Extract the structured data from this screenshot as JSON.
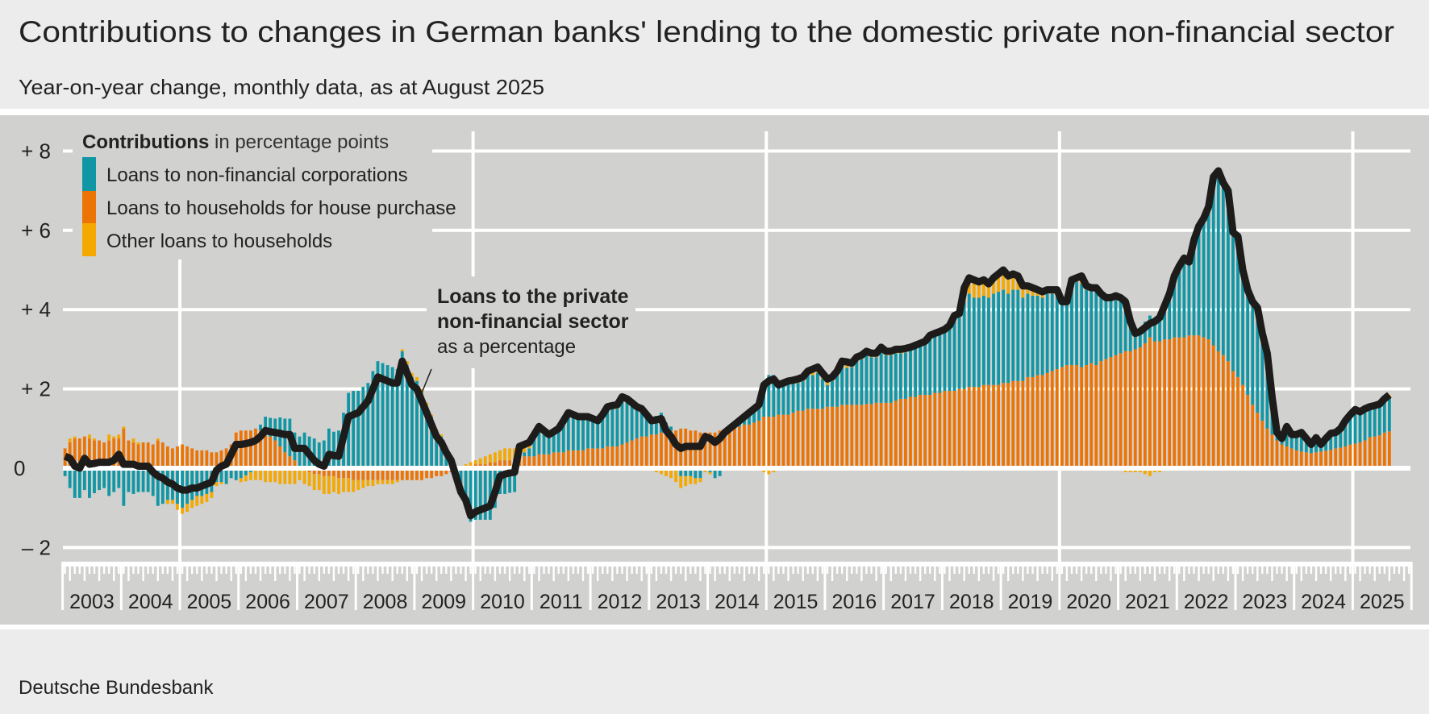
{
  "header": {
    "title": "Contributions to changes in German banks' lending to the domestic private non-financial sector",
    "subtitle": "Year-on-year change, monthly data, as at August 2025"
  },
  "footer": {
    "source": "Deutsche Bundesbank"
  },
  "legend": {
    "heading_bold": "Contributions",
    "heading_rest": " in percentage points",
    "items": [
      {
        "label": "Loans to non-financial corporations",
        "color": "#1096a4"
      },
      {
        "label": "Loans to households for house purchase",
        "color": "#ec7404"
      },
      {
        "label": "Other loans to households",
        "color": "#f5a800"
      }
    ]
  },
  "annotation": {
    "line1": "Loans to the private",
    "line2": "non-financial sector",
    "line3": "as a percentage"
  },
  "colors": {
    "background": "#ececec",
    "panel": "#d1d1cf",
    "grid": "#ffffff",
    "line": "#1e1c1a"
  },
  "chart_data": {
    "type": "bar",
    "stacked": true,
    "frequency": "monthly",
    "x_start": "2003-01",
    "x_end": "2025-08",
    "x_tick_labels": [
      "2003",
      "2004",
      "2005",
      "2006",
      "2007",
      "2008",
      "2009",
      "2010",
      "2011",
      "2012",
      "2013",
      "2014",
      "2015",
      "2016",
      "2017",
      "2018",
      "2019",
      "2020",
      "2021",
      "2022",
      "2023",
      "2024",
      "2025"
    ],
    "y_tick_labels": [
      "– 2",
      "0",
      "+ 2",
      "+ 4",
      "+ 6",
      "+ 8"
    ],
    "y_ticks": [
      -2,
      0,
      2,
      4,
      6,
      8
    ],
    "ylim": [
      -2.9,
      8.6
    ],
    "grid": true,
    "legend_position": "top-left",
    "line_series": {
      "name": "Loans to the private non-financial sector as a percentage",
      "values": [
        0.3,
        0.25,
        0.05,
        0.0,
        0.25,
        0.1,
        0.12,
        0.15,
        0.15,
        0.15,
        0.2,
        0.35,
        0.1,
        0.1,
        0.1,
        0.05,
        0.05,
        0.05,
        -0.1,
        -0.2,
        -0.25,
        -0.35,
        -0.4,
        -0.5,
        -0.55,
        -0.55,
        -0.5,
        -0.5,
        -0.45,
        -0.4,
        -0.35,
        -0.05,
        0.05,
        0.1,
        0.35,
        0.6,
        0.6,
        0.62,
        0.65,
        0.7,
        0.8,
        0.95,
        0.92,
        0.9,
        0.88,
        0.85,
        0.85,
        0.5,
        0.5,
        0.5,
        0.35,
        0.2,
        0.1,
        0.05,
        0.35,
        0.32,
        0.3,
        0.8,
        1.3,
        1.35,
        1.4,
        1.55,
        1.7,
        2.0,
        2.3,
        2.25,
        2.2,
        2.15,
        2.15,
        2.7,
        2.4,
        2.1,
        2.0,
        1.7,
        1.4,
        1.1,
        0.8,
        0.65,
        0.4,
        0.2,
        -0.2,
        -0.6,
        -0.8,
        -1.2,
        -1.1,
        -1.05,
        -1.0,
        -0.95,
        -0.6,
        -0.2,
        -0.15,
        -0.12,
        -0.1,
        0.55,
        0.6,
        0.65,
        0.85,
        1.05,
        0.95,
        0.85,
        0.92,
        1.0,
        1.2,
        1.4,
        1.35,
        1.3,
        1.3,
        1.3,
        1.25,
        1.2,
        1.35,
        1.55,
        1.58,
        1.6,
        1.8,
        1.75,
        1.65,
        1.55,
        1.5,
        1.35,
        1.2,
        1.22,
        1.25,
        0.95,
        0.8,
        0.6,
        0.5,
        0.55,
        0.55,
        0.55,
        0.55,
        0.8,
        0.75,
        0.65,
        0.75,
        0.9,
        1.0,
        1.1,
        1.2,
        1.3,
        1.4,
        1.5,
        1.6,
        2.1,
        2.2,
        2.25,
        2.1,
        2.15,
        2.2,
        2.22,
        2.25,
        2.3,
        2.45,
        2.5,
        2.55,
        2.4,
        2.25,
        2.3,
        2.45,
        2.7,
        2.68,
        2.65,
        2.8,
        2.85,
        2.95,
        2.9,
        2.9,
        3.05,
        2.95,
        2.95,
        3.0,
        3.0,
        3.02,
        3.05,
        3.1,
        3.15,
        3.2,
        3.35,
        3.4,
        3.45,
        3.5,
        3.6,
        3.85,
        3.9,
        4.55,
        4.8,
        4.75,
        4.7,
        4.75,
        4.65,
        4.8,
        4.9,
        5.0,
        4.85,
        4.9,
        4.85,
        4.6,
        4.6,
        4.55,
        4.5,
        4.45,
        4.5,
        4.5,
        4.5,
        4.2,
        4.2,
        4.75,
        4.8,
        4.85,
        4.6,
        4.55,
        4.55,
        4.4,
        4.3,
        4.3,
        4.35,
        4.3,
        4.2,
        3.7,
        3.4,
        3.45,
        3.55,
        3.65,
        3.7,
        3.8,
        4.1,
        4.4,
        4.85,
        5.1,
        5.3,
        5.2,
        5.75,
        6.1,
        6.3,
        6.6,
        7.35,
        7.5,
        7.2,
        7.0,
        5.95,
        5.85,
        5.0,
        4.5,
        4.2,
        4.05,
        3.4,
        2.9,
        1.8,
        0.9,
        0.75,
        1.05,
        0.85,
        0.85,
        0.9,
        0.75,
        0.6,
        0.77,
        0.6,
        0.75,
        0.88,
        0.9,
        1.0,
        1.2,
        1.35,
        1.48,
        1.42,
        1.5,
        1.55,
        1.58,
        1.62,
        1.75,
        1.85
      ]
    },
    "series": [
      {
        "name": "Loans to non-financial corporations",
        "color": "#1096a4",
        "values": [
          -0.2,
          -0.5,
          -0.75,
          -0.75,
          -0.55,
          -0.75,
          -0.63,
          -0.55,
          -0.5,
          -0.7,
          -0.6,
          -0.5,
          -0.95,
          -0.6,
          -0.65,
          -0.6,
          -0.6,
          -0.6,
          -0.7,
          -0.95,
          -0.9,
          -0.8,
          -0.8,
          -0.9,
          -1.0,
          -0.9,
          -0.8,
          -0.7,
          -0.7,
          -0.65,
          -0.6,
          -0.35,
          -0.35,
          -0.4,
          -0.25,
          -0.3,
          -0.25,
          -0.18,
          -0.1,
          -0.05,
          0.15,
          0.4,
          0.47,
          0.55,
          0.73,
          0.85,
          0.95,
          0.7,
          0.75,
          0.9,
          0.8,
          0.75,
          0.65,
          0.7,
          1.0,
          0.92,
          0.95,
          1.4,
          1.9,
          1.95,
          1.95,
          2.05,
          2.15,
          2.45,
          2.7,
          2.65,
          2.6,
          2.55,
          2.5,
          2.95,
          2.6,
          2.3,
          2.2,
          1.9,
          1.55,
          1.3,
          0.95,
          0.8,
          0.5,
          0.25,
          -0.2,
          -0.65,
          -0.9,
          -1.35,
          -1.3,
          -1.3,
          -1.3,
          -1.3,
          -1.0,
          -0.65,
          -0.65,
          -0.62,
          -0.6,
          0.1,
          0.1,
          0.2,
          0.45,
          0.6,
          0.5,
          0.45,
          0.47,
          0.55,
          0.75,
          0.9,
          0.85,
          0.8,
          0.8,
          0.75,
          0.7,
          0.65,
          0.8,
          0.95,
          0.98,
          0.95,
          1.1,
          1.05,
          0.9,
          0.8,
          0.7,
          0.55,
          0.4,
          0.47,
          0.5,
          0.25,
          0.1,
          -0.05,
          -0.2,
          -0.2,
          -0.2,
          -0.25,
          -0.25,
          -0.05,
          -0.1,
          -0.25,
          -0.2,
          -0.05,
          -0.05,
          0.05,
          0.1,
          0.15,
          0.25,
          0.35,
          0.45,
          0.9,
          1.05,
          1.05,
          0.8,
          0.8,
          0.8,
          0.77,
          0.7,
          0.75,
          0.85,
          0.85,
          0.9,
          0.75,
          0.55,
          0.65,
          0.8,
          1.0,
          0.93,
          0.95,
          1.1,
          1.15,
          1.23,
          1.18,
          1.15,
          1.3,
          1.2,
          1.2,
          1.2,
          1.15,
          1.17,
          1.2,
          1.25,
          1.25,
          1.3,
          1.45,
          1.45,
          1.5,
          1.5,
          1.6,
          1.8,
          1.8,
          2.2,
          2.35,
          2.25,
          2.25,
          2.25,
          2.2,
          2.3,
          2.35,
          2.35,
          2.25,
          2.3,
          2.3,
          2.1,
          2.1,
          2.05,
          2.0,
          1.95,
          2.0,
          1.95,
          1.9,
          1.6,
          1.55,
          2.05,
          2.1,
          2.1,
          1.9,
          1.85,
          1.9,
          1.7,
          1.55,
          1.5,
          1.5,
          1.45,
          1.35,
          0.85,
          0.5,
          0.5,
          0.55,
          0.55,
          0.6,
          0.7,
          0.9,
          1.2,
          1.55,
          1.8,
          2.0,
          1.85,
          2.4,
          2.75,
          3.0,
          3.35,
          4.25,
          4.55,
          4.35,
          4.3,
          3.5,
          3.55,
          2.9,
          2.65,
          2.6,
          2.65,
          2.2,
          1.9,
          0.95,
          0.2,
          0.15,
          0.5,
          0.35,
          0.4,
          0.48,
          0.35,
          0.22,
          0.37,
          0.18,
          0.31,
          0.42,
          0.4,
          0.48,
          0.65,
          0.75,
          0.86,
          0.77,
          0.75,
          0.72,
          0.73,
          0.74,
          0.8,
          0.87
        ]
      },
      {
        "name": "Loans to households for house purchase",
        "color": "#ec7404",
        "values": [
          0.5,
          0.65,
          0.75,
          0.75,
          0.8,
          0.75,
          0.7,
          0.7,
          0.65,
          0.7,
          0.75,
          0.75,
          1.0,
          0.7,
          0.65,
          0.6,
          0.65,
          0.65,
          0.6,
          0.7,
          0.65,
          0.55,
          0.5,
          0.55,
          0.6,
          0.55,
          0.5,
          0.45,
          0.45,
          0.45,
          0.4,
          0.4,
          0.45,
          0.5,
          0.6,
          0.9,
          0.95,
          0.95,
          0.95,
          1.0,
          0.95,
          0.9,
          0.8,
          0.7,
          0.55,
          0.4,
          0.3,
          0.2,
          0.05,
          -0.05,
          -0.1,
          -0.15,
          -0.15,
          -0.2,
          -0.2,
          -0.2,
          -0.25,
          -0.25,
          -0.25,
          -0.3,
          -0.3,
          -0.3,
          -0.3,
          -0.3,
          -0.3,
          -0.3,
          -0.3,
          -0.3,
          -0.3,
          -0.3,
          -0.3,
          -0.3,
          -0.3,
          -0.3,
          -0.25,
          -0.25,
          -0.2,
          -0.2,
          -0.15,
          -0.1,
          -0.05,
          0.0,
          0.05,
          0.05,
          0.1,
          0.1,
          0.1,
          0.15,
          0.15,
          0.2,
          0.2,
          0.2,
          0.25,
          0.25,
          0.3,
          0.3,
          0.3,
          0.35,
          0.35,
          0.35,
          0.4,
          0.4,
          0.4,
          0.45,
          0.45,
          0.45,
          0.45,
          0.5,
          0.5,
          0.5,
          0.5,
          0.55,
          0.55,
          0.55,
          0.6,
          0.65,
          0.7,
          0.75,
          0.8,
          0.8,
          0.85,
          0.85,
          0.9,
          0.9,
          0.95,
          0.95,
          1.0,
          1.0,
          0.95,
          0.95,
          0.9,
          0.9,
          0.9,
          0.9,
          0.95,
          0.95,
          1.0,
          1.0,
          1.05,
          1.1,
          1.1,
          1.15,
          1.2,
          1.3,
          1.3,
          1.3,
          1.35,
          1.35,
          1.35,
          1.4,
          1.45,
          1.45,
          1.5,
          1.5,
          1.5,
          1.5,
          1.55,
          1.55,
          1.55,
          1.6,
          1.6,
          1.6,
          1.6,
          1.6,
          1.62,
          1.62,
          1.65,
          1.65,
          1.65,
          1.65,
          1.7,
          1.75,
          1.75,
          1.8,
          1.8,
          1.85,
          1.85,
          1.85,
          1.9,
          1.9,
          1.95,
          1.95,
          1.95,
          2.0,
          2.0,
          2.05,
          2.05,
          2.05,
          2.1,
          2.1,
          2.1,
          2.1,
          2.15,
          2.15,
          2.2,
          2.2,
          2.2,
          2.3,
          2.3,
          2.35,
          2.35,
          2.4,
          2.45,
          2.5,
          2.55,
          2.6,
          2.6,
          2.6,
          2.55,
          2.6,
          2.65,
          2.6,
          2.7,
          2.75,
          2.8,
          2.85,
          2.9,
          2.95,
          2.95,
          3.0,
          3.05,
          3.15,
          3.3,
          3.2,
          3.2,
          3.25,
          3.25,
          3.3,
          3.3,
          3.3,
          3.35,
          3.35,
          3.35,
          3.3,
          3.25,
          3.1,
          2.95,
          2.85,
          2.7,
          2.45,
          2.3,
          2.1,
          1.85,
          1.6,
          1.4,
          1.2,
          1.0,
          0.85,
          0.7,
          0.6,
          0.55,
          0.5,
          0.45,
          0.42,
          0.4,
          0.38,
          0.4,
          0.42,
          0.44,
          0.46,
          0.5,
          0.52,
          0.55,
          0.6,
          0.62,
          0.65,
          0.7,
          0.78,
          0.8,
          0.83,
          0.9,
          0.93
        ]
      },
      {
        "name": "Other loans to households",
        "color": "#f5a800",
        "values": [
          0.0,
          0.1,
          0.05,
          0.0,
          0.0,
          0.1,
          0.05,
          0.0,
          0.0,
          0.15,
          0.05,
          0.1,
          0.05,
          0.0,
          0.1,
          0.05,
          0.0,
          0.0,
          0.0,
          0.05,
          0.0,
          -0.1,
          -0.1,
          -0.15,
          -0.15,
          -0.2,
          -0.2,
          -0.25,
          -0.2,
          -0.2,
          -0.15,
          -0.1,
          -0.05,
          0.0,
          0.0,
          0.0,
          -0.1,
          -0.15,
          -0.2,
          -0.25,
          -0.3,
          -0.35,
          -0.35,
          -0.35,
          -0.4,
          -0.4,
          -0.4,
          -0.4,
          -0.3,
          -0.35,
          -0.35,
          -0.4,
          -0.4,
          -0.45,
          -0.45,
          -0.4,
          -0.4,
          -0.35,
          -0.35,
          -0.3,
          -0.25,
          -0.2,
          -0.15,
          -0.15,
          -0.1,
          -0.1,
          -0.1,
          -0.1,
          -0.05,
          0.05,
          0.1,
          0.1,
          0.1,
          0.1,
          0.1,
          0.05,
          0.05,
          0.05,
          0.05,
          0.05,
          0.05,
          0.05,
          0.05,
          0.1,
          0.1,
          0.15,
          0.2,
          0.2,
          0.25,
          0.25,
          0.3,
          0.3,
          0.25,
          0.2,
          0.2,
          0.15,
          0.1,
          0.1,
          0.1,
          0.05,
          0.05,
          0.05,
          0.05,
          0.05,
          0.05,
          0.05,
          0.05,
          0.05,
          0.05,
          0.05,
          0.05,
          0.05,
          0.05,
          0.1,
          0.1,
          0.05,
          0.05,
          0.0,
          0.0,
          0.0,
          -0.05,
          -0.1,
          -0.15,
          -0.2,
          -0.25,
          -0.3,
          -0.3,
          -0.25,
          -0.2,
          -0.15,
          -0.1,
          -0.05,
          -0.05,
          0.0,
          0.0,
          0.0,
          0.05,
          0.05,
          0.05,
          0.05,
          0.05,
          0.0,
          -0.05,
          -0.1,
          -0.15,
          -0.1,
          -0.05,
          0.0,
          0.05,
          0.05,
          0.1,
          0.1,
          0.1,
          0.15,
          0.15,
          0.15,
          0.15,
          0.1,
          0.1,
          0.1,
          0.15,
          0.1,
          0.1,
          0.1,
          0.1,
          0.1,
          0.1,
          0.1,
          0.1,
          0.1,
          0.1,
          0.1,
          0.1,
          0.05,
          0.05,
          0.05,
          0.05,
          0.05,
          0.05,
          0.05,
          0.05,
          0.05,
          0.1,
          0.1,
          0.35,
          0.4,
          0.45,
          0.4,
          0.4,
          0.35,
          0.4,
          0.45,
          0.5,
          0.45,
          0.4,
          0.35,
          0.3,
          0.2,
          0.2,
          0.15,
          0.15,
          0.1,
          0.1,
          0.1,
          0.05,
          0.05,
          0.1,
          0.1,
          0.2,
          0.1,
          0.05,
          0.05,
          0.0,
          0.0,
          0.0,
          0.0,
          -0.05,
          -0.1,
          -0.1,
          -0.1,
          -0.1,
          -0.15,
          -0.2,
          -0.1,
          -0.1,
          -0.05,
          -0.05,
          0.0,
          0.0,
          0.0,
          0.0,
          0.0,
          0.0,
          0.0,
          0.0,
          0.0,
          0.0,
          0.0,
          0.0,
          0.0,
          0.0,
          0.0,
          0.0,
          0.0,
          0.0,
          0.0,
          0.0,
          0.0,
          0.0,
          0.0,
          0.0,
          0.0,
          0.0,
          0.0,
          0.0,
          0.0,
          0.0,
          0.0,
          0.0,
          0.0,
          0.0,
          0.0,
          0.0,
          0.0,
          0.0,
          0.0,
          0.05,
          0.05,
          0.05,
          0.05,
          0.05,
          0.05
        ]
      }
    ]
  }
}
